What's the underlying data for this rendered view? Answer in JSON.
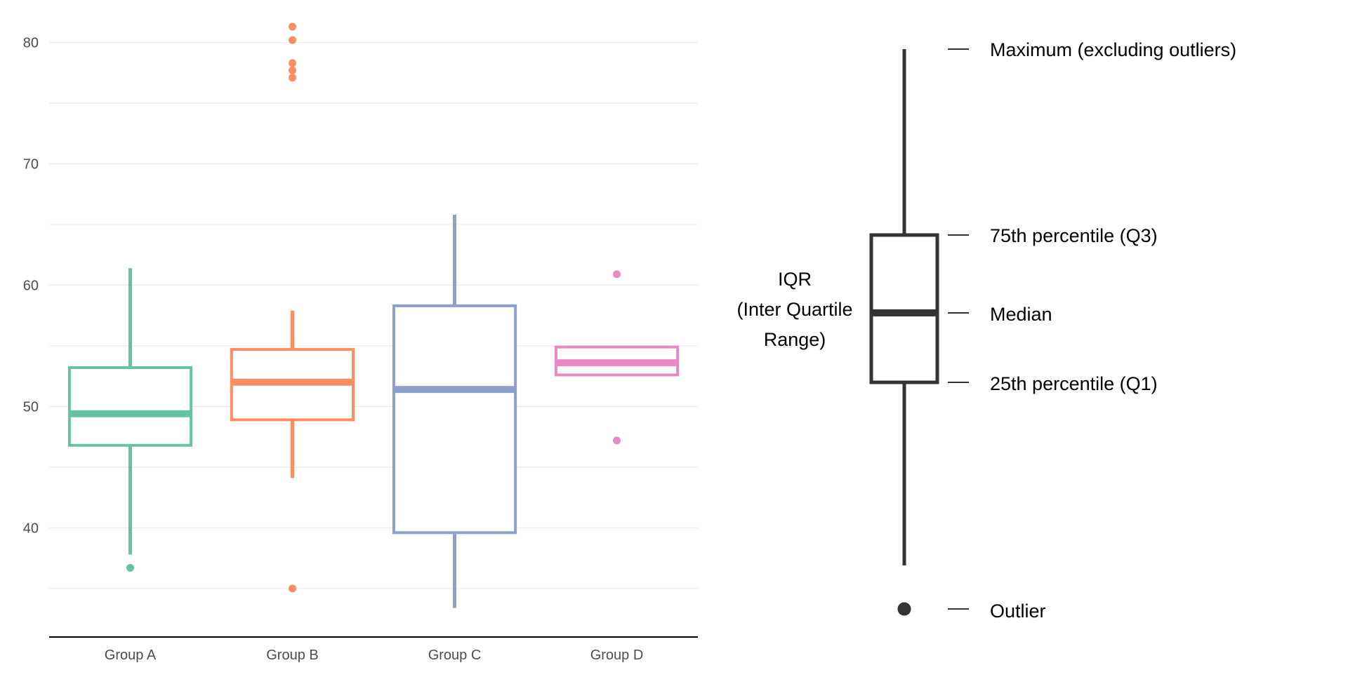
{
  "chart_data": [
    {
      "type": "boxplot",
      "title": "",
      "xlabel": "",
      "ylabel": "",
      "categories": [
        "Group A",
        "Group B",
        "Group C",
        "Group D"
      ],
      "ylim": [
        31,
        83.5
      ],
      "yticks": [
        40,
        50,
        60,
        70,
        80
      ],
      "yticks_text": [
        "40",
        "50",
        "60",
        "70",
        "80"
      ],
      "grid": true,
      "legend": false,
      "boxes": [
        {
          "name": "Group A",
          "color": "#66c2a5",
          "whisker_low": 37.8,
          "q1": 46.8,
          "median": 49.4,
          "q3": 53.2,
          "whisker_high": 61.4,
          "outliers": [
            36.7
          ]
        },
        {
          "name": "Group B",
          "color": "#fc8d62",
          "whisker_low": 44.1,
          "q1": 48.9,
          "median": 52.0,
          "q3": 54.7,
          "whisker_high": 57.9,
          "outliers": [
            35.0,
            77.1,
            77.7,
            78.3,
            80.2,
            81.3
          ]
        },
        {
          "name": "Group C",
          "color": "#8da0cb",
          "whisker_low": 33.4,
          "q1": 39.6,
          "median": 51.4,
          "q3": 58.3,
          "whisker_high": 65.8,
          "outliers": []
        },
        {
          "name": "Group D",
          "color": "#e78ac3",
          "whisker_low": 52.6,
          "q1": 52.6,
          "median": 53.6,
          "q3": 54.9,
          "whisker_high": 54.9,
          "outliers": [
            47.2,
            60.9
          ]
        }
      ]
    },
    {
      "type": "diagram",
      "title": "",
      "color": "#333333",
      "iqr_label_lines": [
        "IQR",
        "(Inter Quartile",
        "Range)"
      ],
      "labels": {
        "maximum": "Maximum (excluding outliers)",
        "q3": "75th percentile (Q3)",
        "median": "Median",
        "q1": "25th percentile (Q1)",
        "outlier": "Outlier"
      }
    }
  ]
}
